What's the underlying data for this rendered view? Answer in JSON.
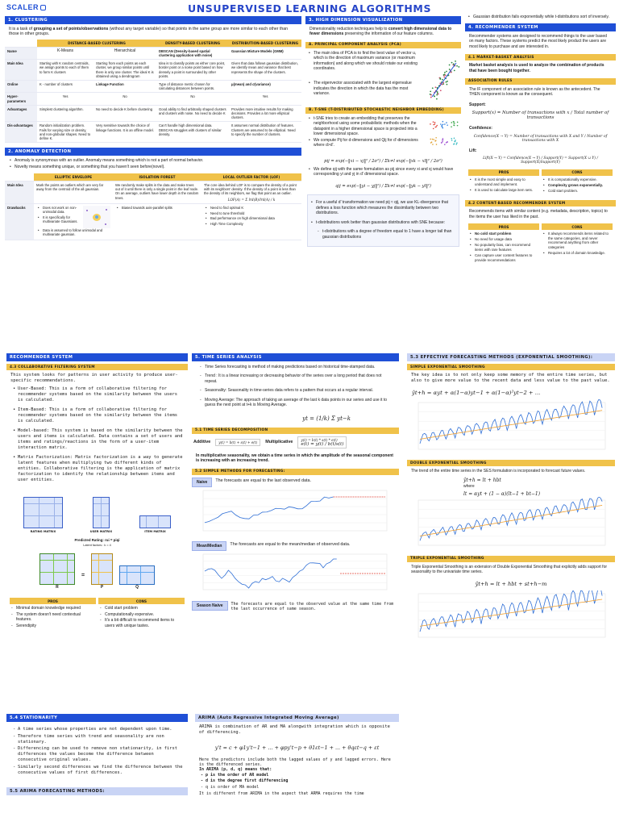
{
  "brand": {
    "logo": "SCALER",
    "accent": "#1f4fd6",
    "yellow": "#f0c24a"
  },
  "title": "UNSUPERVISED LEARNING ALGORITHMS",
  "clustering": {
    "header": "1. Clustering",
    "intro_a": "It is a task of ",
    "intro_b": "grouping a set of points/observations",
    "intro_c": " (without any target variable) so that points in the same group are more similar to each other than those in other groups.",
    "columns": [
      "",
      "Distance-Based Clustering",
      "",
      "Density-Based Clustering",
      "Distribution-Based Clustering"
    ],
    "rows": [
      {
        "label": "Name",
        "cells": [
          "K-Means",
          "Hierarchical",
          "DBSCAN (Density-based spatial clustering application with noise)",
          "Gaussian Mixture Models (GMM)"
        ]
      },
      {
        "label": "Main Idea",
        "cells": [
          "Starting with K random centroids, we assign points to each of them to form K clusters",
          "Starting from each points as each cluster, we group similar points until there is only one cluster. The ideal K is obtained using a dendrogram",
          "Idea is to classify points as either core point, border point or a noise point based on how densely a point is surrounded by other points.",
          "Given that data follows gaussian distribution, we identify mean and variance that best represents the shape of the clusters."
        ]
      },
      {
        "label": "Online",
        "cells": [
          "K - number of clusters",
          "Linkage Function",
          "Type of distance metric chosen for calculating distances between points.",
          "μ(mean) and σ(variance)"
        ]
      },
      {
        "label": "Hyper-parameters",
        "cells": [
          "Yes",
          "No",
          "No",
          "Yes"
        ]
      },
      {
        "label": "Advantages",
        "cells": [
          "Simplest clustering algorithm.",
          "No need to decide K before clustering",
          "Good ability to find arbitrarily shaped clusters and clusters with noise. No need to decide K",
          "Provides more intuitive results for making decisions. Provides a lot more elliptical clusters."
        ]
      },
      {
        "label": "Dis-advantages",
        "cells": [
          "Random initialization problem. Fails for varying size or density, and non-globular shapes. Need to define K.",
          "Very sensitive towards the choice of linkage functions. It is an offline model.",
          "Can't handle high dimensional data. DBSCAN struggles with clusters of similar density.",
          "It assumes normal distribution of features. Clusters are assumed to be elliptical. Need to specify the number of clusters."
        ]
      }
    ]
  },
  "anomaly": {
    "header": "2. Anomaly Detection",
    "points": [
      "Anomaly is synonymous with an outlier. Anomaly means something which is not a part of normal behavior.",
      "Novelty means something unique, or something that you haven't seen before(novel)."
    ],
    "columns": [
      "",
      "Elliptic Envelope",
      "Isolation Forest",
      "Local Outlier Factor (LOF)"
    ],
    "main_idea_label": "Main Idea",
    "drawbacks_label": "Drawbacks",
    "main_idea": [
      "Mark the points as outliers which are very far away from the centroid of the all gaussian.",
      "We randomly make splits in the data and make trees out of it until there is only a single point in the leaf node. On an average, outliers have lower depth in the random trees.",
      "The core idea behind LOF is to compare the density of a point with its neighbors' density. If the density of a point is less than the density of its neighbors, we flag that point as an outlier."
    ],
    "lof_formula": "LOF(A) = Σ lrd(B)/lrd(A) / k",
    "drawbacks": [
      [
        "Does not work on non-unimodal data.",
        "It is specifically for multivariate Gaussians.",
        "Data is assumed to follow unimodal and multivariate gaussian."
      ],
      [
        "Biased towards axis-parallel splits"
      ],
      [
        "Need to find optimal K",
        "Need to tune threshold",
        "Bad performance on high dimensional data",
        "High Time Complexity"
      ]
    ]
  },
  "highdim": {
    "header": "3. High Dimension Visualization",
    "intro_a": "Dimensionality reduction techniques help to ",
    "intro_b": "convert high dimensional data to fewer dimensions",
    "intro_c": " preserving the information of our feature columns.",
    "pca_header": "a. Principal Component Analysis (PCA)",
    "pca_points": [
      "The main idea of PCA is to find the best value of vector u, which is the direction of maximum variance (or maximum information) and along which we should rotate our existing coordinates.",
      "The eigenvector associated with the largest eigenvalue indicates the direction in which the data has the most variance."
    ],
    "tsne_header": "b. t-SNE (t-Distributed Stochastic Neighbor Embedding)",
    "tsne_points": [
      "t-SNE tries to create an embedding that preserves the neighborhood using some probabilistic methods when the datapoint in a higher dimensional space is projected into a lower dimensional space.",
      "We compute Pij for d-dimensions and Qij for d'-dimensions where d>d'."
    ],
    "pij_formula": "pij = exp(−‖xi − xj‖² / 2σ²) / Σk≠l exp(−‖xk − xl‖² / 2σ²)",
    "tsne_more": "We define qij with the same formulation as pij since every xi and xj would have corresponding yi and yj in d' dimensional space.",
    "qij_formula": "qij = exp(−‖yi − yj‖²) / Σk≠l exp(−‖yk − yl‖²)",
    "tsne_kl": "For a useful d' transformation we need pij ≈ qij, we use KL-divergence that defines a loss function which measures the dissimilarity between two distributions.",
    "tsne_t": "t-distributions work better than gaussian distributions with SNE because:",
    "tsne_t_sub": "t-distributions with a degree of freedom equal to 1 have a longer tail than gaussian distributions"
  },
  "rec_top": {
    "gauss_note": "Gaussian distribution fails exponentially while t-distributions sort of inversely.",
    "header": "4. Recommender System",
    "intro": "Recommender systems are designed to recommend things to the user based on many factors. These systems predict the most likely product the users are most likely to purchase and are interested in.",
    "mba_header": "4.1 Market-Basket Analysis",
    "mba_text": "Market basket analysis is used to analyze the combination of products that have been bought together.",
    "assoc_header": "Association Rules",
    "assoc_text": "The IF component of an association rule is known as the antecedent. The THEN component is known as the consequent.",
    "support_label": "Support:",
    "support_formula": "Support(x) = Number of transactions with x / Total number of transactions",
    "confidence_label": "Confidence:",
    "confidence_formula": "Confidence(X → Y) = Number of transactions with X and Y / Number of transactions with X",
    "lift_label": "Lift:",
    "lift_formula": "Lift(X → Y) = Confidence(X → Y) / Support(Y) = Support(X ∪ Y) / Support(X)Support(Y)",
    "pros_label": "Pros",
    "cons_label": "Cons",
    "pros": [
      "It is the most simple and easy to understand and implement.",
      "It is used to calculate large item sets."
    ],
    "cons": [
      "It is computationally expensive.",
      "Complexity grows exponentially.",
      "Cold start problem."
    ],
    "cb_header": "4.2 Content-Based Recommender System",
    "cb_text": "Recommends items with similar content (e.g. metadata, description, topics) to the items the user has liked in the past.",
    "cb_pros": [
      "No cold start problem",
      "No need for usage data",
      "No popularity bias, can recommend items with rare features",
      "Can capture user content features to provide recommendations"
    ],
    "cb_cons": [
      "It always recommends items related to the same categories, and never recommend anything from other categories",
      "Requires a lot of domain knowledge."
    ]
  },
  "rec_bottom": {
    "header": "Recommender System",
    "cf_header": "4.3 Collaborative Filtering System",
    "intro": "This system looks for patterns in user activity to produce user-specific recommendations.",
    "points": [
      "User-Based: This is a form of collaborative filtering for recommender systems based on the similarity between the users is calculated.",
      "Item-Based: This is a form of collaborative filtering for recommender systems based on the similarity between the items is calculated.",
      "Model-based: This system is based on the similarity between the users and items is calculated. Data contains a set of users and items and ratings/reactions in the form of a user-item interaction matrix.",
      "Matrix Factorization: Matrix factorization is a way to generate latent features when multiplying two different kinds of entities. Collaborative filtering is the application of matrix factorization to identify the relationship between items and user entities."
    ],
    "mat_labels": [
      "Rating Matrix",
      "User Matrix",
      "Item Matrix"
    ],
    "predicted": "Predicted Rating:  rui = piqi",
    "latent": "Latent factors : k = 4",
    "mf_letters": [
      "R",
      "=",
      "P",
      "Q"
    ],
    "pros_label": "Pros",
    "cons_label": "Cons",
    "pros": [
      "Minimal domain knowledge required",
      "The system doesn't need contextual features.",
      "Serendipity"
    ],
    "cons": [
      "Cold start problem",
      "Computationally expensive.",
      "It's a bit difficult to recommend items to users with unique tastes."
    ]
  },
  "stationarity": {
    "header": "5.4 Stationarity",
    "points": [
      "A time series whose properties are not dependent upon time.",
      "Therefore time series with trend and seasonality are non stationary.",
      "Differencing can be used to remove non stationarity, in first differences the values become the difference between consecutive original values.",
      "Similarly second differences we find the difference between the consecutive values of first differences."
    ],
    "arima_header": "5.5 ARIMA Forecasting methods:"
  },
  "timeseries": {
    "header": "5. Time series analysis",
    "points": [
      "Time Series forecasting is method of making predictions based on historical time-stamped data.",
      "Trend : It is a linear increasing or decreasing behavior of the series over a long period that does not repeat.",
      "Seasonality: Seasonality in time-series data refers to a pattern that occurs at a regular interval.",
      "Moving Average: The approach of taking an average of the last k data points in our series and use it to guess the next point at t+k is Moving Average."
    ],
    "ma_formula": "yt = (1/k) Σ yt−k",
    "decomp_header": "5.1 Time Series Decomposition",
    "additive_label": "Additive",
    "additive_formula": "y(t) = b(t) + s(t) + e(t)",
    "multiplicative_label": "Multiplicative",
    "multiplicative_formula": "y(t) = b(t) * s(t) * e(t)",
    "et_formula": "e(t) = y(t) / b(t)s(t)",
    "mult_note": "In multiplicative seasonality, we obtain a time series in which the amplitude of the seasonal component is increasing with an increasing trend.",
    "simple_header": "5.2 Simple methods for forecasting:",
    "naive_label": "Naive",
    "naive_text": "The forecasts are equal to the last observed data.",
    "mean_label": "Mean/Median",
    "mean_text": "The forecasts are equal to the mean/median of observed data.",
    "season_label": "Season Naive",
    "season_text": "The forecasts are equal to the observed value at the same time from the last occurrence of same season."
  },
  "arima": {
    "header": "ARIMA (Auto Regressive Integrated Moving Average)",
    "intro": "ARIMA is combination of AR and MA alongwith integration which is opposite of differencing.",
    "formula": "y't = c + φ1y't−1 + ... + φpy't−p + θ1εt−1 + ... + θqεt−q + εt",
    "desc": "Here the predictors include both the lagged values of y and lagged errors. Here is the differenced series.",
    "pdq": "In ARIMA (p, d, q) means that:",
    "items": [
      "p is the order of AR model",
      "d is the degree first differencing",
      "q is order of MA model"
    ],
    "tail": "It is different from ARIMA in the aspect that ARMA requires the time"
  },
  "smoothing": {
    "header": "5.3 Effective Forecasting methods (Exponential smoothing):",
    "ses_header": "Simple Exponential Smoothing",
    "ses_text": "The key idea is to not only keep some memory of the entire time series, but also to give more value to the recent data and less value to the past value.",
    "ses_formula": "ŷt+h = αyt + α(1−α)yt−1 + α(1−α)²yt−2 + ...",
    "des_header": "Double Exponential Smoothing",
    "des_text": "The trend of the entire time series in the SES formulation is incorporated to forecast future values.",
    "des_formula": "ŷt+h = lt + hbt",
    "where": "where",
    "des_formula2": "lt = αyt + (1 − α)(lt−1 + bt−1)",
    "tes_header": "Triple Exponential Smoothing",
    "tes_text": "Triple Exponential Smoothing is an extension of Double Exponential Smoothing that explicitly adds support for seasonality to the univariate time series.",
    "tes_formula": "ŷt+h = lt + hbt + st+h−m"
  }
}
